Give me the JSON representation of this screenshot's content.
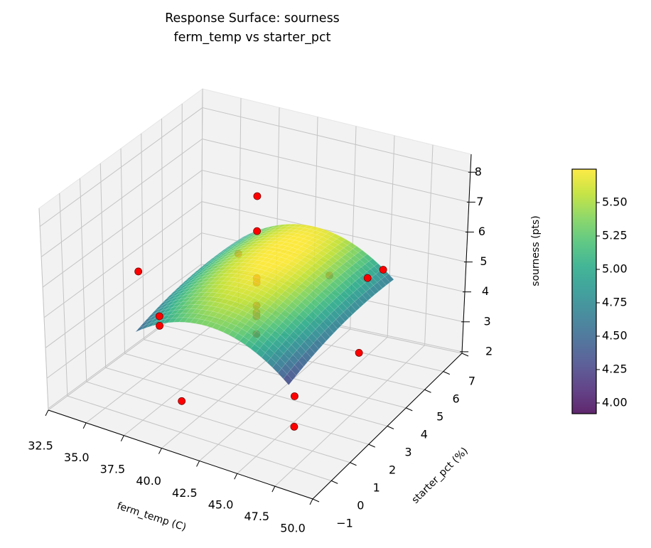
{
  "chart_data": {
    "type": "surface3d",
    "title": "Response Surface: sourness",
    "subtitle": "ferm_temp vs starter_pct",
    "xlabel": "ferm_temp (C)",
    "ylabel": "starter_pct (%)",
    "zlabel": "sourness (pts)",
    "xlim": [
      32.5,
      50.0
    ],
    "ylim": [
      -1,
      7
    ],
    "zlim": [
      1.95,
      8.6
    ],
    "xticks": [
      "32.5",
      "35.0",
      "37.5",
      "40.0",
      "42.5",
      "45.0",
      "47.5",
      "50.0"
    ],
    "yticks": [
      "−1",
      "0",
      "1",
      "2",
      "3",
      "4",
      "5",
      "6",
      "7"
    ],
    "zticks": [
      "2",
      "3",
      "4",
      "5",
      "6",
      "7",
      "8"
    ],
    "grid": true,
    "surface": {
      "colormap": "viridis",
      "x_range": [
        36.5,
        46.5
      ],
      "y_range": [
        0.5,
        6
      ],
      "model": {
        "intercept": 5.72,
        "x_center": 41.25,
        "y_center": 3,
        "x_quad": -0.04,
        "y_lin": 0.08,
        "y_quad": -0.03
      }
    },
    "points": {
      "color": "#ff0000",
      "x": [
        41.25,
        41.25,
        41.25,
        41.25,
        41.25,
        41.25,
        41.25,
        41.25,
        41.25,
        47.5,
        47.5,
        48.0,
        47.0,
        46.0,
        43.5,
        37.5,
        33.5,
        35.5,
        35.5
      ],
      "y": [
        3,
        3,
        3,
        3,
        3,
        3,
        3,
        3,
        -0.9,
        0,
        0,
        3,
        5,
        5,
        5,
        5,
        3,
        2.5,
        2.5
      ],
      "z": [
        8.27,
        7.13,
        5.6,
        5.45,
        4.7,
        4.47,
        4.35,
        3.77,
        3.64,
        3.31,
        4.3,
        4.08,
        5.54,
        5.14,
        4.91,
        4.87,
        4.75,
        3.81,
        3.5
      ]
    },
    "colorbar": {
      "label": "sourness (pts)",
      "range": [
        3.92,
        5.75
      ],
      "ticks": [
        "4.00",
        "4.25",
        "4.50",
        "4.75",
        "5.00",
        "5.25",
        "5.50"
      ]
    }
  }
}
